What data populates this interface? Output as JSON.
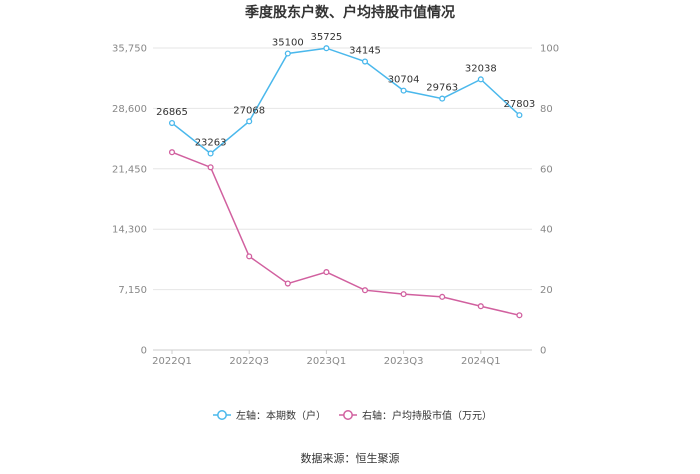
{
  "chart_data": {
    "type": "line",
    "title": "季度股东户数、户均持股市值情况",
    "categories": [
      "2022Q1",
      "2022Q2",
      "2022Q3",
      "2022Q4",
      "2023Q1",
      "2023Q2",
      "2023Q3",
      "2023Q4",
      "2024Q1",
      "2024Q2"
    ],
    "x_tick_labels": [
      "2022Q1",
      "2022Q3",
      "2023Q1",
      "2023Q3",
      "2024Q1"
    ],
    "left_axis": {
      "ylim": [
        0,
        35750
      ],
      "ticks": [
        "0",
        "7,150",
        "14,300",
        "21,450",
        "28,600",
        "35,750"
      ]
    },
    "right_axis": {
      "ylim": [
        0,
        100
      ],
      "ticks": [
        "0",
        "20",
        "40",
        "60",
        "80",
        "100"
      ]
    },
    "series": [
      {
        "name": "左轴：本期数（户）",
        "axis": "left",
        "color": "#4ab8ec",
        "values": [
          26865,
          23263,
          27068,
          35100,
          35725,
          34145,
          30704,
          29763,
          32038,
          27803
        ],
        "labels": [
          "26865",
          "23263",
          "27068",
          "35100",
          "35725",
          "34145",
          "30704",
          "29763",
          "32038",
          "27803"
        ]
      },
      {
        "name": "右轴：户均持股市值（万元）",
        "axis": "right",
        "color": "#d1609f",
        "values": [
          65.5,
          60.5,
          31.0,
          22.0,
          25.8,
          19.8,
          18.5,
          17.6,
          14.5,
          11.5
        ]
      }
    ],
    "grid": true,
    "legend_position": "bottom"
  },
  "source": "数据来源：恒生聚源"
}
